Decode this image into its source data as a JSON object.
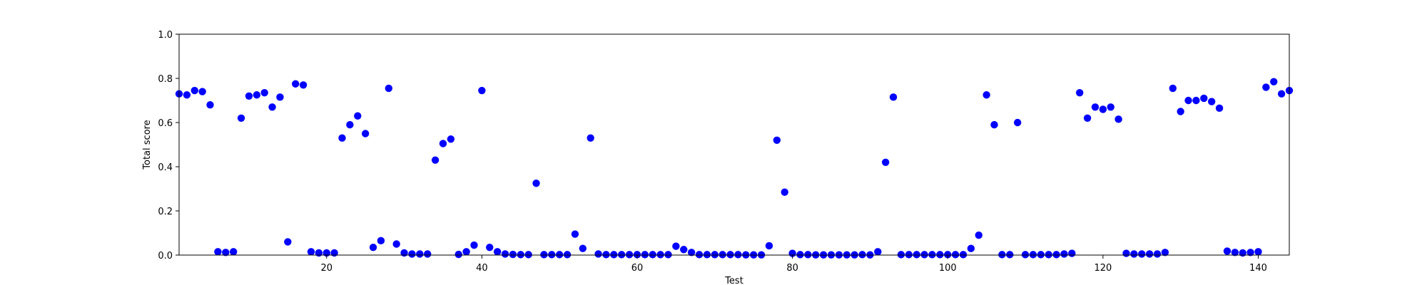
{
  "chart_data": {
    "type": "scatter",
    "title": "",
    "xlabel": "Test",
    "ylabel": "Total score",
    "xlim": [
      1,
      144
    ],
    "ylim": [
      0.0,
      1.0
    ],
    "x_ticks": [
      20,
      40,
      60,
      80,
      100,
      120,
      140
    ],
    "x_tick_labels": [
      "20",
      "40",
      "60",
      "80",
      "100",
      "120",
      "140"
    ],
    "y_ticks": [
      0.0,
      0.2,
      0.4,
      0.6,
      0.8,
      1.0
    ],
    "y_tick_labels": [
      "0.0",
      "0.2",
      "0.4",
      "0.6",
      "0.8",
      "1.0"
    ],
    "grid": false,
    "marker_color": "#0000ff",
    "series": [
      {
        "points": [
          [
            1,
            0.73
          ],
          [
            2,
            0.725
          ],
          [
            3,
            0.745
          ],
          [
            4,
            0.74
          ],
          [
            5,
            0.68
          ],
          [
            6,
            0.015
          ],
          [
            7,
            0.012
          ],
          [
            8,
            0.015
          ],
          [
            9,
            0.62
          ],
          [
            10,
            0.72
          ],
          [
            11,
            0.725
          ],
          [
            12,
            0.735
          ],
          [
            13,
            0.67
          ],
          [
            14,
            0.715
          ],
          [
            15,
            0.06
          ],
          [
            16,
            0.775
          ],
          [
            17,
            0.77
          ],
          [
            18,
            0.015
          ],
          [
            19,
            0.01
          ],
          [
            20,
            0.01
          ],
          [
            21,
            0.01
          ],
          [
            22,
            0.53
          ],
          [
            23,
            0.59
          ],
          [
            24,
            0.63
          ],
          [
            25,
            0.55
          ],
          [
            26,
            0.035
          ],
          [
            27,
            0.065
          ],
          [
            28,
            0.755
          ],
          [
            29,
            0.05
          ],
          [
            30,
            0.01
          ],
          [
            31,
            0.005
          ],
          [
            32,
            0.005
          ],
          [
            33,
            0.005
          ],
          [
            34,
            0.43
          ],
          [
            35,
            0.505
          ],
          [
            36,
            0.525
          ],
          [
            37,
            0.003
          ],
          [
            38,
            0.015
          ],
          [
            39,
            0.045
          ],
          [
            40,
            0.745
          ],
          [
            41,
            0.035
          ],
          [
            42,
            0.015
          ],
          [
            43,
            0.005
          ],
          [
            44,
            0.003
          ],
          [
            45,
            0.002
          ],
          [
            46,
            0.002
          ],
          [
            47,
            0.325
          ],
          [
            48,
            0.002
          ],
          [
            49,
            0.002
          ],
          [
            50,
            0.002
          ],
          [
            51,
            0.002
          ],
          [
            52,
            0.095
          ],
          [
            53,
            0.03
          ],
          [
            54,
            0.53
          ],
          [
            55,
            0.005
          ],
          [
            56,
            0.002
          ],
          [
            57,
            0.002
          ],
          [
            58,
            0.002
          ],
          [
            59,
            0.002
          ],
          [
            60,
            0.002
          ],
          [
            61,
            0.002
          ],
          [
            62,
            0.002
          ],
          [
            63,
            0.002
          ],
          [
            64,
            0.002
          ],
          [
            65,
            0.04
          ],
          [
            66,
            0.025
          ],
          [
            67,
            0.012
          ],
          [
            68,
            0.002
          ],
          [
            69,
            0.002
          ],
          [
            70,
            0.002
          ],
          [
            71,
            0.002
          ],
          [
            72,
            0.002
          ],
          [
            73,
            0.002
          ],
          [
            74,
            0.001
          ],
          [
            75,
            0.001
          ],
          [
            76,
            0.001
          ],
          [
            77,
            0.042
          ],
          [
            78,
            0.52
          ],
          [
            79,
            0.285
          ],
          [
            80,
            0.008
          ],
          [
            81,
            0.002
          ],
          [
            82,
            0.002
          ],
          [
            83,
            0.001
          ],
          [
            84,
            0.001
          ],
          [
            85,
            0.001
          ],
          [
            86,
            0.001
          ],
          [
            87,
            0.001
          ],
          [
            88,
            0.001
          ],
          [
            89,
            0.002
          ],
          [
            90,
            0.001
          ],
          [
            91,
            0.015
          ],
          [
            92,
            0.42
          ],
          [
            93,
            0.715
          ],
          [
            94,
            0.002
          ],
          [
            95,
            0.002
          ],
          [
            96,
            0.002
          ],
          [
            97,
            0.002
          ],
          [
            98,
            0.002
          ],
          [
            99,
            0.002
          ],
          [
            100,
            0.002
          ],
          [
            101,
            0.002
          ],
          [
            102,
            0.002
          ],
          [
            103,
            0.03
          ],
          [
            104,
            0.09
          ],
          [
            105,
            0.725
          ],
          [
            106,
            0.59
          ],
          [
            107,
            0.002
          ],
          [
            108,
            0.002
          ],
          [
            109,
            0.6
          ],
          [
            110,
            0.002
          ],
          [
            111,
            0.002
          ],
          [
            112,
            0.002
          ],
          [
            113,
            0.002
          ],
          [
            114,
            0.002
          ],
          [
            115,
            0.005
          ],
          [
            116,
            0.008
          ],
          [
            117,
            0.735
          ],
          [
            118,
            0.62
          ],
          [
            119,
            0.67
          ],
          [
            120,
            0.66
          ],
          [
            121,
            0.67
          ],
          [
            122,
            0.615
          ],
          [
            123,
            0.008
          ],
          [
            124,
            0.005
          ],
          [
            125,
            0.005
          ],
          [
            126,
            0.005
          ],
          [
            127,
            0.005
          ],
          [
            128,
            0.012
          ],
          [
            129,
            0.755
          ],
          [
            130,
            0.65
          ],
          [
            131,
            0.7
          ],
          [
            132,
            0.7
          ],
          [
            133,
            0.71
          ],
          [
            134,
            0.695
          ],
          [
            135,
            0.665
          ],
          [
            136,
            0.018
          ],
          [
            137,
            0.012
          ],
          [
            138,
            0.01
          ],
          [
            139,
            0.012
          ],
          [
            140,
            0.015
          ],
          [
            141,
            0.76
          ],
          [
            142,
            0.785
          ],
          [
            143,
            0.73
          ],
          [
            144,
            0.745
          ]
        ]
      }
    ]
  }
}
